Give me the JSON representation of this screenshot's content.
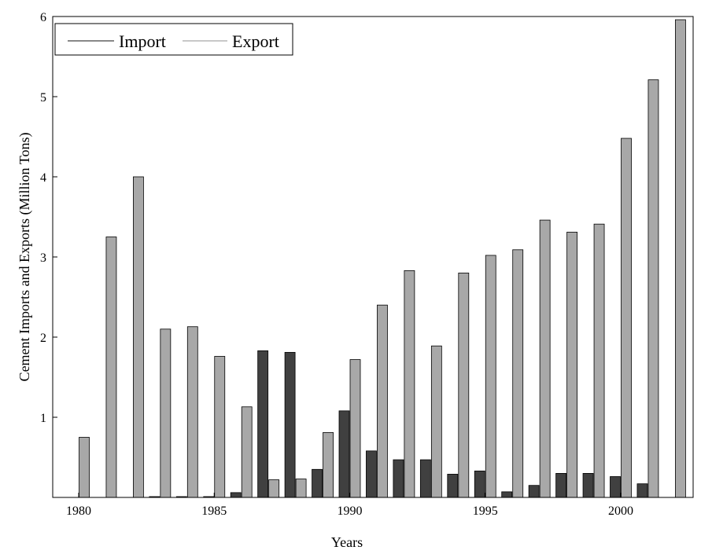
{
  "chart_data": {
    "type": "bar",
    "xlabel": "Years",
    "ylabel": "Cement Imports and Exports (Million Tons)",
    "ylim": [
      0,
      6
    ],
    "yticks": [
      1,
      2,
      3,
      4,
      5,
      6
    ],
    "xtick_labels": [
      "1980",
      "1985",
      "1990",
      "1995",
      "2000"
    ],
    "xtick_years": [
      1980,
      1985,
      1990,
      1995,
      2000
    ],
    "legend_position": "top-left",
    "grid": false,
    "categories": [
      1980,
      1981,
      1982,
      1983,
      1984,
      1985,
      1986,
      1987,
      1988,
      1989,
      1990,
      1991,
      1992,
      1993,
      1994,
      1995,
      1996,
      1997,
      1998,
      1999,
      2000,
      2001,
      2002
    ],
    "series": [
      {
        "name": "Import",
        "color": "#404040",
        "values": [
          0,
          0,
          0,
          0.01,
          0.01,
          0.01,
          0.06,
          1.83,
          1.81,
          0.35,
          1.08,
          0.58,
          0.47,
          0.47,
          0.29,
          0.33,
          0.07,
          0.15,
          0.3,
          0.3,
          0.26,
          0.17,
          0
        ]
      },
      {
        "name": "Export",
        "color": "#a8a8a8",
        "values": [
          0.75,
          3.25,
          4.0,
          2.1,
          2.13,
          1.76,
          1.13,
          0.22,
          0.23,
          0.81,
          1.72,
          2.4,
          2.83,
          1.89,
          2.8,
          3.02,
          3.09,
          3.46,
          3.31,
          3.41,
          4.48,
          5.21,
          5.96
        ]
      }
    ]
  }
}
